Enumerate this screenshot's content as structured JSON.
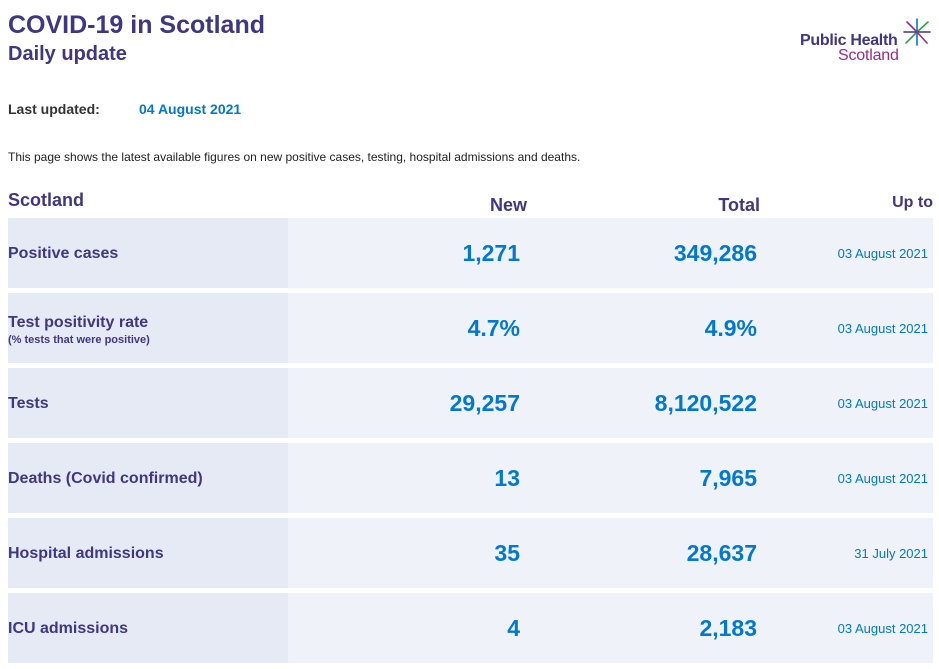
{
  "header": {
    "title": "COVID-19 in Scotland",
    "subtitle": "Daily update"
  },
  "logo": {
    "line1": "Public Health",
    "line2": "Scotland",
    "colors": {
      "primary": "#3f3685",
      "secondary": "#9b2a8e",
      "accent": "#0078d4"
    }
  },
  "updated": {
    "label": "Last updated:",
    "date": "04 August 2021"
  },
  "intro": "This page shows the latest available figures on new positive cases, testing, hospital admissions and deaths.",
  "table": {
    "headers": {
      "name": "Scotland",
      "new": "New",
      "total": "Total",
      "up_to": "Up to"
    },
    "rows": [
      {
        "label": "Positive cases",
        "sublabel": "",
        "new": "1,271",
        "total": "349,286",
        "up_to": "03 August 2021"
      },
      {
        "label": "Test positivity rate",
        "sublabel": "(% tests that were positive)",
        "new": "4.7%",
        "total": "4.9%",
        "up_to": "03 August 2021"
      },
      {
        "label": "Tests",
        "sublabel": "",
        "new": "29,257",
        "total": "8,120,522",
        "up_to": "03 August 2021"
      },
      {
        "label": "Deaths (Covid confirmed)",
        "sublabel": "",
        "new": "13",
        "total": "7,965",
        "up_to": "03 August 2021"
      },
      {
        "label": "Hospital admissions",
        "sublabel": "",
        "new": "35",
        "total": "28,637",
        "up_to": "31 July 2021"
      },
      {
        "label": "ICU admissions",
        "sublabel": "",
        "new": "4",
        "total": "2,183",
        "up_to": "03 August 2021"
      }
    ]
  }
}
